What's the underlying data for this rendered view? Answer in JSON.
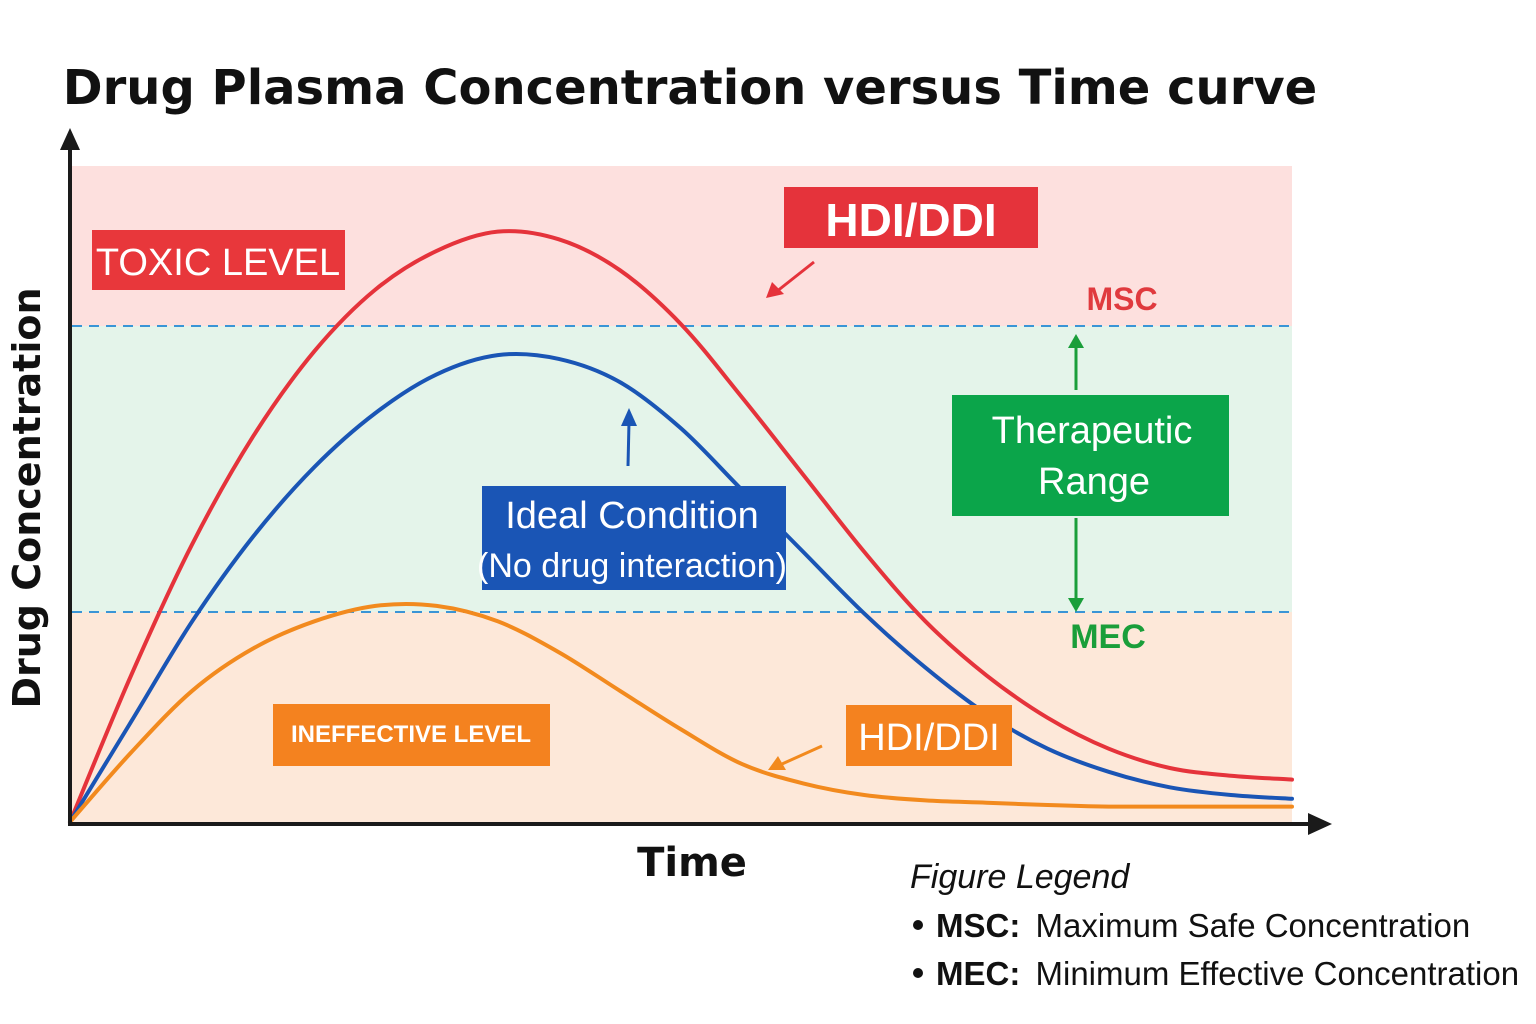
{
  "chart_data": {
    "type": "line",
    "title": "Drug Plasma Concentration versus Time curve",
    "xlabel": "Time",
    "ylabel": "Drug Concentration",
    "grid": false,
    "thresholds": [
      {
        "name": "MSC",
        "y": 6.1,
        "color": "#e03a3e"
      },
      {
        "name": "MEC",
        "y": 3.2,
        "color": "#1a9e3a"
      }
    ],
    "zones": [
      {
        "label": "TOXIC LEVEL",
        "range": [
          6.1,
          8.0
        ],
        "fill": "#fde0de",
        "label_bg": "#e8373b"
      },
      {
        "label": "Therapeutic Range",
        "range": [
          3.2,
          6.1
        ],
        "fill": "#e4f4ea",
        "label_bg": "#0ba54a"
      },
      {
        "label": "INEFFECTIVE LEVEL",
        "range": [
          0,
          3.2
        ],
        "fill": "#fde8d9",
        "label_bg": "#f4821f"
      }
    ],
    "xlim": [
      0,
      100
    ],
    "ylim": [
      0,
      8.5
    ],
    "series": [
      {
        "name": "HDI/DDI",
        "color": "#e5333b",
        "x": [
          0,
          5,
          10,
          15,
          20,
          25,
          30,
          35,
          40,
          45,
          50,
          55,
          60,
          65,
          70,
          75,
          80,
          85,
          90,
          95,
          100
        ],
        "y": [
          0,
          1.9,
          3.6,
          5.0,
          6.1,
          6.9,
          7.4,
          7.65,
          7.55,
          7.15,
          6.45,
          5.5,
          4.5,
          3.5,
          2.6,
          1.9,
          1.35,
          0.95,
          0.7,
          0.6,
          0.55
        ]
      },
      {
        "name": "Ideal Condition (No drug interaction)",
        "color": "#1a55b5",
        "x": [
          0,
          5,
          10,
          15,
          20,
          25,
          30,
          35,
          40,
          45,
          50,
          55,
          60,
          65,
          70,
          75,
          80,
          85,
          90,
          95,
          100
        ],
        "y": [
          0,
          1.3,
          2.6,
          3.7,
          4.6,
          5.3,
          5.8,
          6.05,
          6.0,
          5.7,
          5.1,
          4.3,
          3.5,
          2.7,
          2.0,
          1.4,
          0.95,
          0.65,
          0.45,
          0.35,
          0.3
        ]
      },
      {
        "name": "HDI/DDI",
        "color": "#f28a1e",
        "x": [
          0,
          5,
          10,
          15,
          20,
          25,
          30,
          35,
          40,
          45,
          50,
          55,
          60,
          65,
          70,
          75,
          80,
          85,
          90,
          95,
          100
        ],
        "y": [
          0,
          0.9,
          1.7,
          2.25,
          2.6,
          2.8,
          2.8,
          2.6,
          2.2,
          1.7,
          1.2,
          0.75,
          0.5,
          0.35,
          0.28,
          0.25,
          0.22,
          0.2,
          0.2,
          0.2,
          0.2
        ]
      }
    ],
    "annotations": [
      {
        "text": "TOXIC LEVEL",
        "bg": "#e8373b",
        "fg": "#ffffff"
      },
      {
        "text": "HDI/DDI",
        "bg": "#e5333b",
        "fg": "#ffffff",
        "series": 0
      },
      {
        "text": "MSC",
        "fg": "#e03a3e"
      },
      {
        "text": "Therapeutic",
        "bg": "#0ba54a",
        "fg": "#ffffff"
      },
      {
        "text": "Range",
        "bg": "#0ba54a",
        "fg": "#ffffff"
      },
      {
        "text": "Ideal Condition",
        "bg": "#1a55b5",
        "fg": "#ffffff",
        "series": 1
      },
      {
        "text": "(No drug interaction)",
        "bg": "#1a55b5",
        "fg": "#ffffff",
        "series": 1
      },
      {
        "text": "MEC",
        "fg": "#1a9e3a"
      },
      {
        "text": "INEFFECTIVE LEVEL",
        "bg": "#f4821f",
        "fg": "#ffffff"
      },
      {
        "text": "HDI/DDI",
        "bg": "#f4821f",
        "fg": "#ffffff",
        "series": 2
      }
    ],
    "legend": {
      "title": "Figure Legend",
      "items": [
        {
          "abbr": "MSC:",
          "text": "Maximum Safe Concentration"
        },
        {
          "abbr": "MEC:",
          "text": "Minimum Effective Concentration"
        }
      ]
    }
  }
}
